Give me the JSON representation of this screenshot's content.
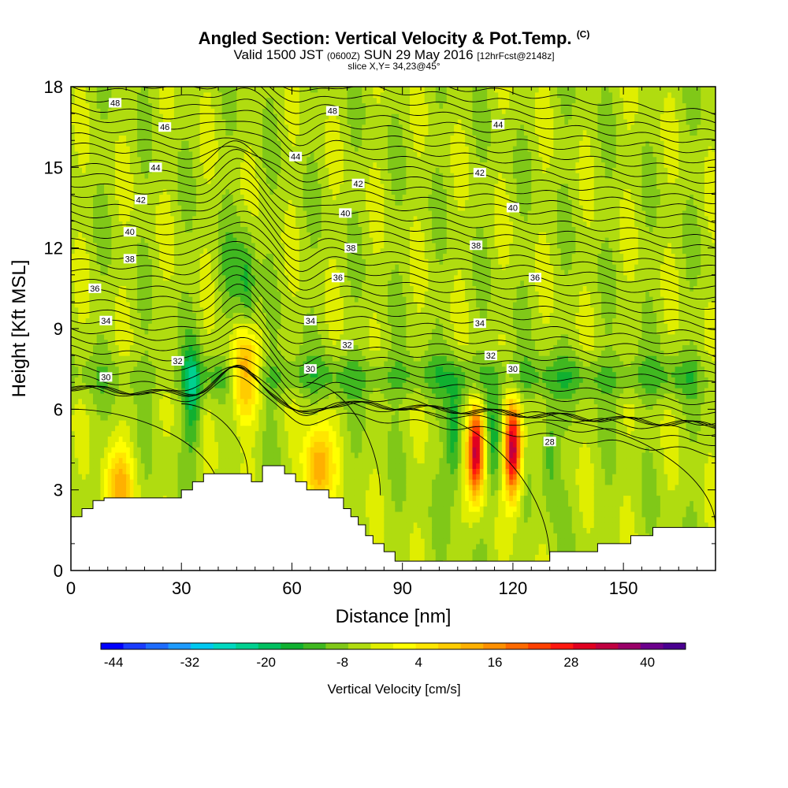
{
  "header": {
    "title_main": "Angled Section: Vertical Velocity & Pot.Temp.",
    "title_units": "(C)",
    "valid_prefix": "Valid 1500 JST",
    "valid_z": "(0600Z)",
    "valid_date": "SUN 29 May 2016",
    "valid_fcst": "[12hrFcst@2148z]",
    "slice": "slice X,Y= 34,23@45°"
  },
  "chart_data": {
    "type": "heatmap",
    "xlabel": "Distance [nm]",
    "ylabel": "Height [Kft MSL]",
    "xlim": [
      0,
      175
    ],
    "ylim": [
      0,
      18
    ],
    "x_ticks": [
      0,
      30,
      60,
      90,
      120,
      150
    ],
    "y_ticks": [
      0,
      3,
      6,
      9,
      12,
      15,
      18
    ],
    "colorbar": {
      "label": "Vertical Velocity [cm/s]",
      "tick_labels": [
        "-44",
        "-32",
        "-20",
        "-8",
        "4",
        "16",
        "28",
        "40"
      ],
      "min": -46,
      "max": 46,
      "step": 4,
      "colors": [
        "#0000ff",
        "#1a3cff",
        "#1e6cff",
        "#1e9bff",
        "#00c8f0",
        "#00d8c0",
        "#00d090",
        "#00c060",
        "#10b030",
        "#40b820",
        "#80c818",
        "#b0dc10",
        "#e0ee00",
        "#ffff00",
        "#ffe600",
        "#ffcc00",
        "#ffb000",
        "#ff9000",
        "#ff6a00",
        "#ff4000",
        "#ff1810",
        "#e00020",
        "#c00040",
        "#9a0068",
        "#6c008c",
        "#4a0090"
      ]
    },
    "pot_temp_isolines_c": [
      30,
      32,
      34,
      36,
      38,
      40,
      42,
      44,
      46,
      48
    ],
    "contour_labels": [
      {
        "x": 12,
        "y": 17.4,
        "label": "48"
      },
      {
        "x": 25.5,
        "y": 16.5,
        "label": "46"
      },
      {
        "x": 71,
        "y": 17.1,
        "label": "48"
      },
      {
        "x": 116,
        "y": 16.6,
        "label": "44"
      },
      {
        "x": 23,
        "y": 15.0,
        "label": "44"
      },
      {
        "x": 61,
        "y": 15.4,
        "label": "44"
      },
      {
        "x": 111,
        "y": 14.8,
        "label": "42"
      },
      {
        "x": 19,
        "y": 13.8,
        "label": "42"
      },
      {
        "x": 78,
        "y": 14.4,
        "label": "42"
      },
      {
        "x": 120,
        "y": 13.5,
        "label": "40"
      },
      {
        "x": 16,
        "y": 12.6,
        "label": "40"
      },
      {
        "x": 74.5,
        "y": 13.3,
        "label": "40"
      },
      {
        "x": 16,
        "y": 11.6,
        "label": "38"
      },
      {
        "x": 76,
        "y": 12.0,
        "label": "38"
      },
      {
        "x": 110,
        "y": 12.1,
        "label": "38"
      },
      {
        "x": 6.5,
        "y": 10.5,
        "label": "36"
      },
      {
        "x": 72.5,
        "y": 10.9,
        "label": "36"
      },
      {
        "x": 126,
        "y": 10.9,
        "label": "36"
      },
      {
        "x": 9.5,
        "y": 9.3,
        "label": "34"
      },
      {
        "x": 65,
        "y": 9.3,
        "label": "34"
      },
      {
        "x": 111,
        "y": 9.2,
        "label": "34"
      },
      {
        "x": 29,
        "y": 7.8,
        "label": "32"
      },
      {
        "x": 75,
        "y": 8.4,
        "label": "32"
      },
      {
        "x": 114,
        "y": 8.0,
        "label": "32"
      },
      {
        "x": 9.5,
        "y": 7.2,
        "label": "30"
      },
      {
        "x": 65,
        "y": 7.5,
        "label": "30"
      },
      {
        "x": 120,
        "y": 7.5,
        "label": "30"
      },
      {
        "x": 130,
        "y": 4.8,
        "label": "28"
      }
    ],
    "terrain_profile": [
      [
        0,
        2
      ],
      [
        3,
        2
      ],
      [
        3,
        2.3
      ],
      [
        6,
        2.3
      ],
      [
        6,
        2.6
      ],
      [
        9,
        2.6
      ],
      [
        9,
        2.7
      ],
      [
        30,
        2.7
      ],
      [
        30,
        3
      ],
      [
        33,
        3
      ],
      [
        33,
        3.3
      ],
      [
        36,
        3.3
      ],
      [
        36,
        3.6
      ],
      [
        49,
        3.6
      ],
      [
        49,
        3.3
      ],
      [
        52,
        3.3
      ],
      [
        52,
        3.9
      ],
      [
        58,
        3.9
      ],
      [
        58,
        3.6
      ],
      [
        61,
        3.6
      ],
      [
        61,
        3.3
      ],
      [
        64,
        3.3
      ],
      [
        64,
        3.0
      ],
      [
        70,
        3.0
      ],
      [
        70,
        2.7
      ],
      [
        74,
        2.7
      ],
      [
        74,
        2.3
      ],
      [
        76,
        2.3
      ],
      [
        76,
        2.0
      ],
      [
        78,
        2.0
      ],
      [
        78,
        1.7
      ],
      [
        80,
        1.7
      ],
      [
        80,
        1.3
      ],
      [
        82,
        1.3
      ],
      [
        82,
        1.0
      ],
      [
        85,
        1.0
      ],
      [
        85,
        0.7
      ],
      [
        88,
        0.7
      ],
      [
        88,
        0.35
      ],
      [
        130,
        0.35
      ],
      [
        130,
        0.7
      ],
      [
        143,
        0.7
      ],
      [
        143,
        1.0
      ],
      [
        152,
        1.0
      ],
      [
        152,
        1.3
      ],
      [
        158,
        1.3
      ],
      [
        158,
        1.6
      ],
      [
        162,
        1.6
      ],
      [
        162,
        1.6
      ],
      [
        175,
        1.6
      ]
    ],
    "updrafts": [
      {
        "x": 110,
        "y": 4.5,
        "peak_cm_s": 46
      },
      {
        "x": 120,
        "y": 4.5,
        "peak_cm_s": 46
      },
      {
        "x": 47,
        "y": 7.3,
        "peak_cm_s": 24
      },
      {
        "x": 67,
        "y": 3.8,
        "peak_cm_s": 22
      },
      {
        "x": 13,
        "y": 3.0,
        "peak_cm_s": 18
      }
    ],
    "downdrafts": [
      {
        "x": 104,
        "y": 5.0,
        "min_cm_s": -14
      },
      {
        "x": 115,
        "y": 5.0,
        "min_cm_s": -12
      },
      {
        "x": 33,
        "y": 6.5,
        "min_cm_s": -14
      },
      {
        "x": 48,
        "y": 10.5,
        "min_cm_s": -10
      },
      {
        "x": 130,
        "y": 4.5,
        "min_cm_s": -10
      }
    ]
  }
}
